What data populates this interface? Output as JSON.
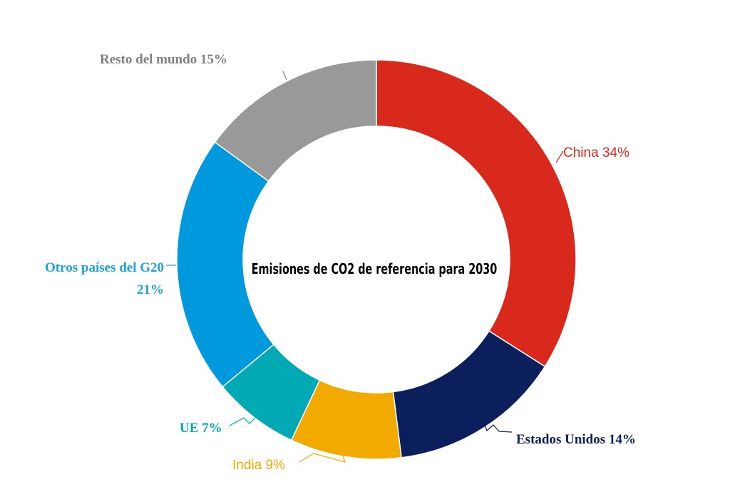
{
  "chart_data": {
    "type": "pie",
    "title": "Emisiones de CO2 de referencia para 2030",
    "start_angle_deg": 0,
    "slices": [
      {
        "name": "China",
        "value": 34,
        "label": "China 34%",
        "color": "#d9291c",
        "label_color": "#d9291c"
      },
      {
        "name": "Estados Unidos",
        "value": 14,
        "label": "Estados Unidos 14%",
        "color": "#0b1f5c",
        "label_color": "#0b1f5c"
      },
      {
        "name": "India",
        "value": 9,
        "label": "India 9%",
        "color": "#f2a900",
        "label_color": "#f2a900"
      },
      {
        "name": "UE",
        "value": 7,
        "label": "UE 7%",
        "color": "#00a9b3",
        "label_color": "#00a9b3"
      },
      {
        "name": "Otros países del G20",
        "value": 21,
        "label_lines": [
          "Otros países del G20",
          "21%"
        ],
        "color": "#0099dd",
        "label_color": "#1aa3dd"
      },
      {
        "name": "Resto del mundo",
        "value": 15,
        "label": "Resto del mundo  15%",
        "color": "#999999",
        "label_color": "#808080"
      }
    ]
  }
}
